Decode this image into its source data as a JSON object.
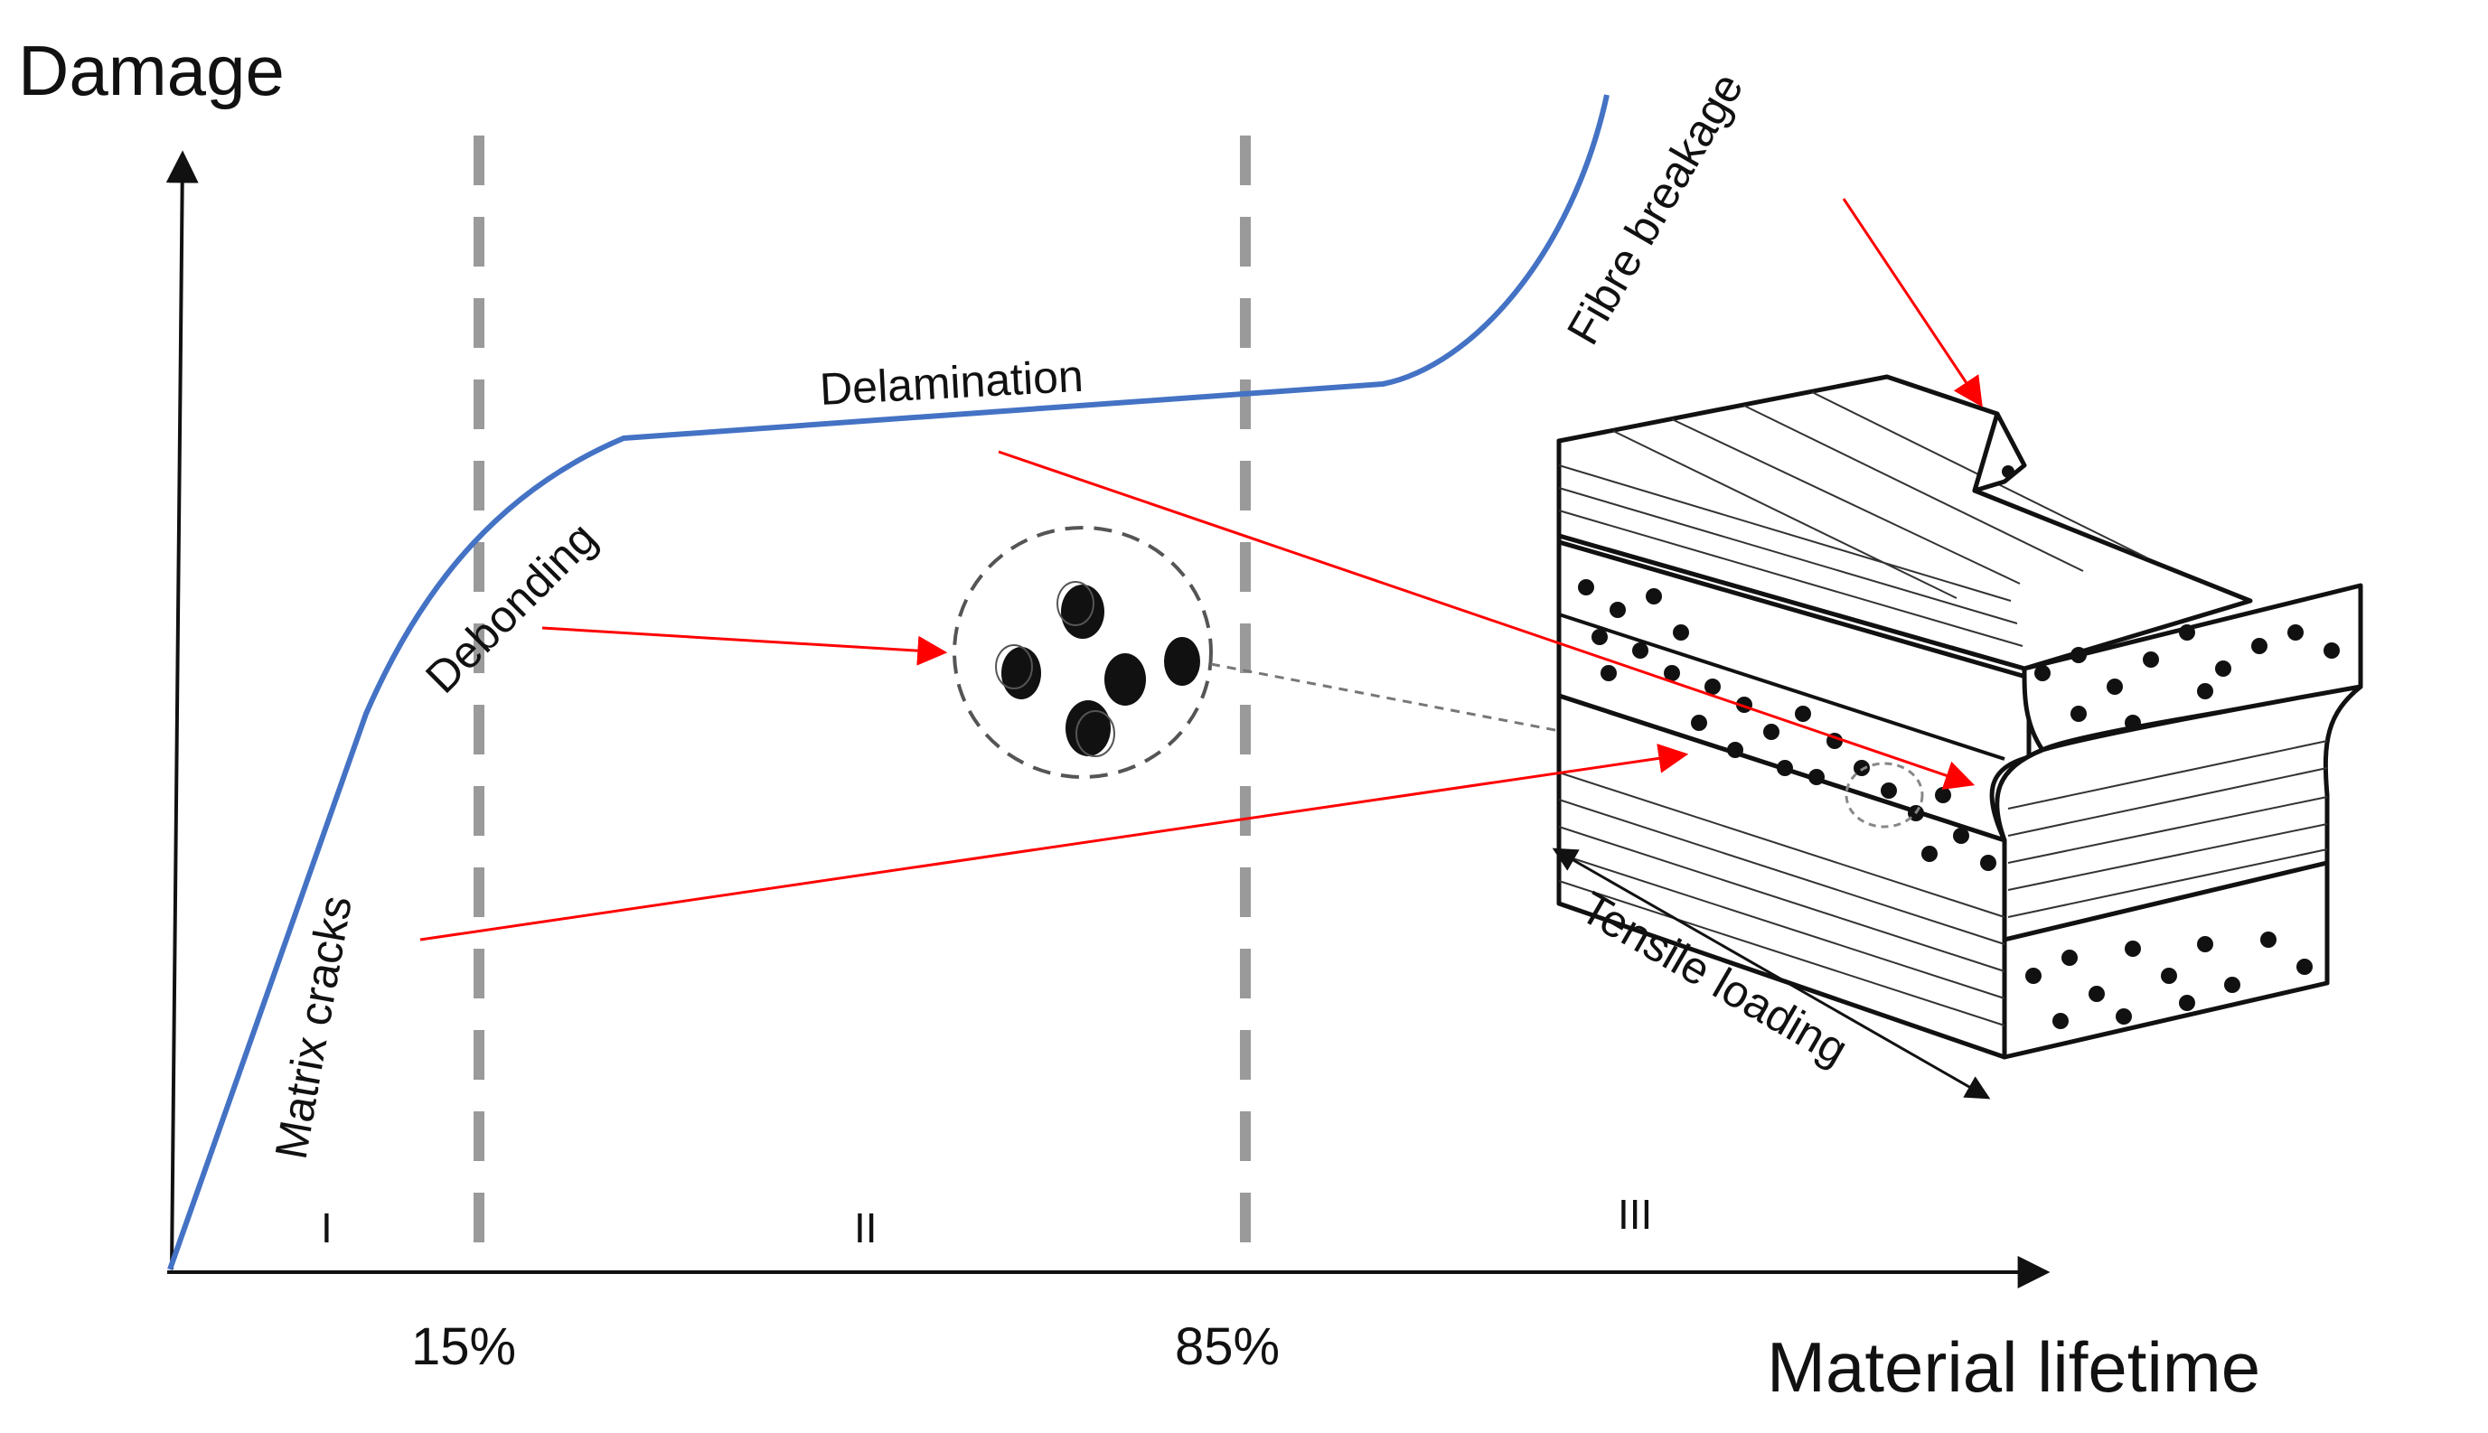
{
  "axes": {
    "y_label": "Damage",
    "x_label": "Material lifetime"
  },
  "thresholds": [
    {
      "label": "15%"
    },
    {
      "label": "85%"
    }
  ],
  "stages": [
    "I",
    "II",
    "III"
  ],
  "mechanisms": {
    "matrix_cracks": "Matrix cracks",
    "debonding": "Debonding",
    "delamination": "Delamination",
    "fibre_breakage": "Fibre breakage"
  },
  "loading": {
    "label": "Tensile loading"
  },
  "colors": {
    "curve": "#4472C4",
    "arrows": "#FF0000",
    "dashed_lines": "#9a9a9a",
    "axes": "#111111"
  }
}
